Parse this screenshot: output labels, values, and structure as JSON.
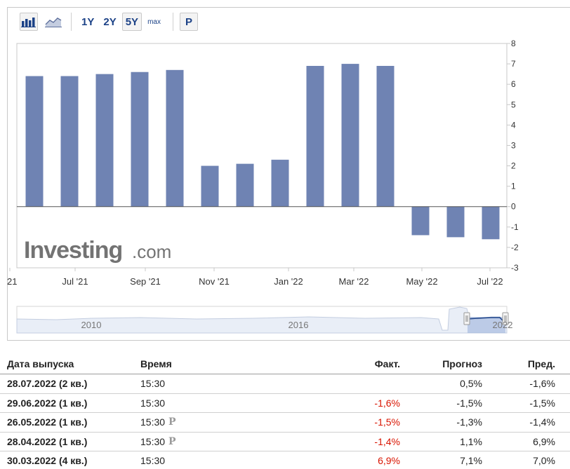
{
  "toolbar": {
    "bar_icon": "bar-chart-icon",
    "line_icon": "line-chart-icon",
    "ranges": [
      "1Y",
      "2Y",
      "5Y",
      "max"
    ],
    "active_range": "5Y",
    "p_label": "P"
  },
  "chart_data": {
    "type": "bar",
    "categories": [
      "Jun '21",
      "Jul '21",
      "Aug '21",
      "Sep '21",
      "Oct '21",
      "Nov '21",
      "Dec '21",
      "Jan '22",
      "Feb '22",
      "Mar '22",
      "Apr '22",
      "May '22",
      "Jun '22",
      "Jul '22"
    ],
    "values": [
      6.4,
      6.4,
      6.5,
      6.6,
      6.7,
      2.0,
      2.1,
      2.3,
      6.9,
      7.0,
      6.9,
      -1.4,
      -1.5,
      -1.6
    ],
    "x_tick_labels": [
      "21",
      "Jul '21",
      "Sep '21",
      "Nov '21",
      "Jan '22",
      "Mar '22",
      "May '22",
      "Jul '22"
    ],
    "y_ticks": [
      8,
      7,
      6,
      5,
      4,
      3,
      2,
      1,
      0,
      -1,
      -2,
      -3
    ],
    "ylim": [
      -3,
      8
    ],
    "bar_color": "#6f83b3",
    "y_axis_side": "right",
    "watermark": {
      "main": "Investing",
      "suffix": ".com"
    },
    "navigator": {
      "labels": [
        "2010",
        "2016",
        "2022"
      ]
    }
  },
  "table": {
    "headers": {
      "date": "Дата выпуска",
      "time": "Время",
      "actual": "Факт.",
      "forecast": "Прогноз",
      "previous": "Пред."
    },
    "rows": [
      {
        "date": "28.07.2022 (2 кв.)",
        "time": "15:30",
        "prelim": "",
        "actual": "",
        "actual_color": "",
        "forecast": "0,5%",
        "previous": "-1,6%"
      },
      {
        "date": "29.06.2022 (1 кв.)",
        "time": "15:30",
        "prelim": "",
        "actual": "-1,6%",
        "actual_color": "#d91400",
        "forecast": "-1,5%",
        "previous": "-1,5%"
      },
      {
        "date": "26.05.2022 (1 кв.)",
        "time": "15:30",
        "prelim": "P",
        "actual": "-1,5%",
        "actual_color": "#d91400",
        "forecast": "-1,3%",
        "previous": "-1,4%"
      },
      {
        "date": "28.04.2022 (1 кв.)",
        "time": "15:30",
        "prelim": "P",
        "actual": "-1,4%",
        "actual_color": "#d91400",
        "forecast": "1,1%",
        "previous": "6,9%"
      },
      {
        "date": "30.03.2022 (4 кв.)",
        "time": "15:30",
        "prelim": "",
        "actual": "6,9%",
        "actual_color": "#d91400",
        "forecast": "7,1%",
        "previous": "7,0%"
      }
    ]
  }
}
